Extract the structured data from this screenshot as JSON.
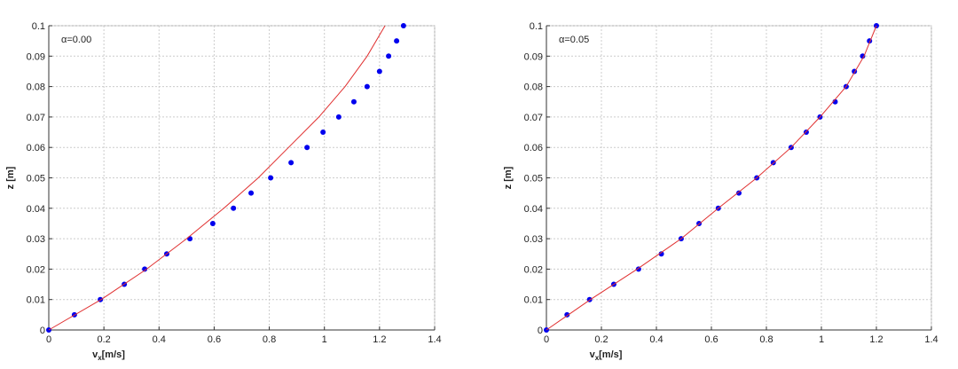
{
  "chart_data": [
    {
      "type": "scatter",
      "annotation": "α=0.00",
      "xlabel": [
        "v",
        "x",
        "[m/s]"
      ],
      "ylabel": "z [m]",
      "xlim": [
        0,
        1.4
      ],
      "ylim": [
        0,
        0.1
      ],
      "xticks": [
        0,
        0.2,
        0.4,
        0.6,
        0.8,
        1,
        1.2,
        1.4
      ],
      "yticks": [
        0,
        0.01,
        0.02,
        0.03,
        0.04,
        0.05,
        0.06,
        0.07,
        0.08,
        0.09,
        0.1
      ],
      "grid": true,
      "series": [
        {
          "type": "scatter",
          "color": "#0000ee",
          "x": [
            0,
            0.093,
            0.187,
            0.274,
            0.348,
            0.428,
            0.512,
            0.595,
            0.67,
            0.734,
            0.805,
            0.879,
            0.937,
            0.995,
            1.052,
            1.107,
            1.155,
            1.2,
            1.233,
            1.262,
            1.287
          ],
          "values": [
            0,
            0.005,
            0.01,
            0.015,
            0.02,
            0.025,
            0.03,
            0.035,
            0.04,
            0.045,
            0.05,
            0.055,
            0.06,
            0.065,
            0.07,
            0.075,
            0.08,
            0.085,
            0.09,
            0.095,
            0.1
          ]
        },
        {
          "type": "line",
          "color": "#e03030",
          "x": [
            0,
            0.19,
            0.355,
            0.5,
            0.635,
            0.76,
            0.87,
            0.98,
            1.075,
            1.155,
            1.22
          ],
          "values": [
            0,
            0.01,
            0.02,
            0.03,
            0.04,
            0.05,
            0.06,
            0.07,
            0.08,
            0.09,
            0.1
          ]
        }
      ]
    },
    {
      "type": "scatter",
      "annotation": "α=0.05",
      "xlabel": [
        "v",
        "x",
        "[m/s]"
      ],
      "ylabel": "z [m]",
      "xlim": [
        0,
        1.4
      ],
      "ylim": [
        0,
        0.1
      ],
      "xticks": [
        0,
        0.2,
        0.4,
        0.6,
        0.8,
        1,
        1.2,
        1.4
      ],
      "yticks": [
        0,
        0.01,
        0.02,
        0.03,
        0.04,
        0.05,
        0.06,
        0.07,
        0.08,
        0.09,
        0.1
      ],
      "grid": true,
      "series": [
        {
          "type": "scatter",
          "color": "#0000ee",
          "x": [
            0,
            0.075,
            0.157,
            0.245,
            0.335,
            0.418,
            0.49,
            0.555,
            0.625,
            0.7,
            0.765,
            0.825,
            0.89,
            0.945,
            0.995,
            1.05,
            1.09,
            1.12,
            1.15,
            1.175,
            1.2
          ],
          "values": [
            0,
            0.005,
            0.01,
            0.015,
            0.02,
            0.025,
            0.03,
            0.035,
            0.04,
            0.045,
            0.05,
            0.055,
            0.06,
            0.065,
            0.07,
            0.075,
            0.08,
            0.085,
            0.09,
            0.095,
            0.1
          ]
        },
        {
          "type": "line",
          "color": "#e03030",
          "x": [
            0,
            0.16,
            0.33,
            0.49,
            0.625,
            0.765,
            0.89,
            0.995,
            1.09,
            1.155,
            1.2
          ],
          "values": [
            0,
            0.01,
            0.02,
            0.03,
            0.04,
            0.05,
            0.06,
            0.07,
            0.08,
            0.09,
            0.1
          ]
        }
      ]
    }
  ]
}
